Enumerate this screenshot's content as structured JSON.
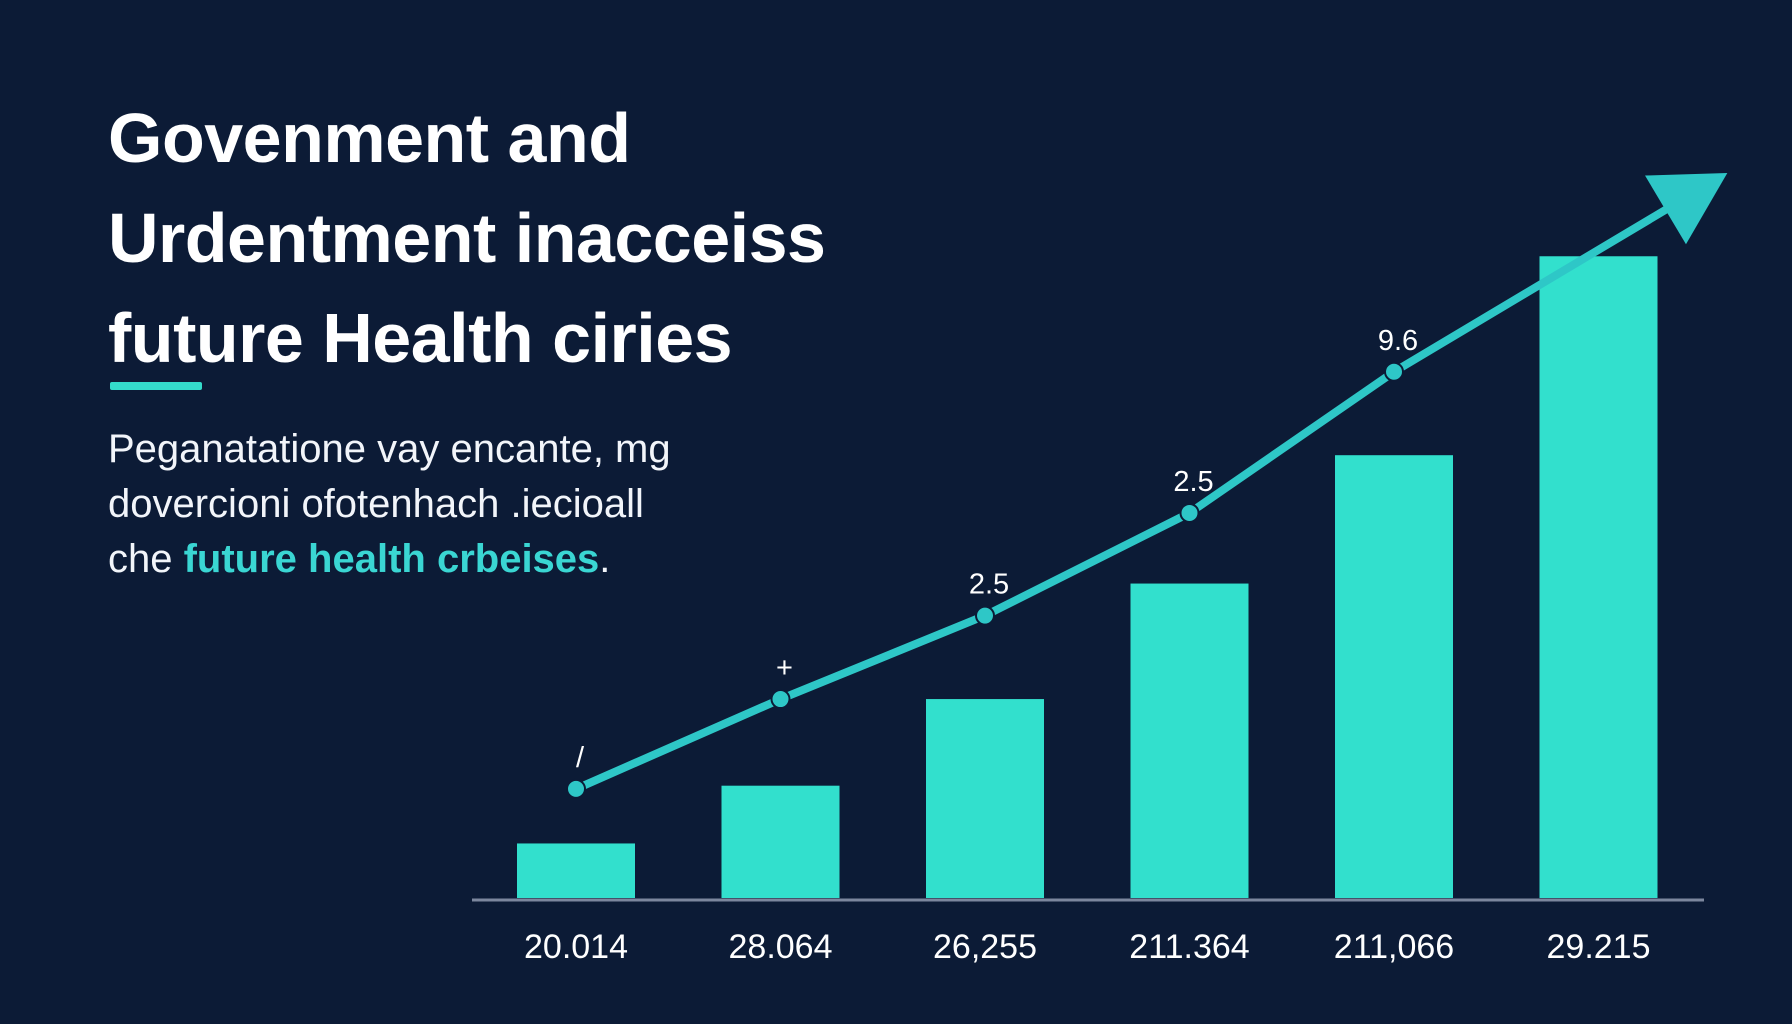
{
  "title_lines": [
    "Govenment and",
    "Urdentment inacceiss",
    "future Health ciries"
  ],
  "subtitle": {
    "line1": "Peganatatione vay encante, mg",
    "line2": "dovercioni ofotenhach .iecioall",
    "line3_prefix": "che ",
    "line3_highlight": "future health crbeises",
    "line3_suffix": "."
  },
  "colors": {
    "background": "#0c1b36",
    "bars": "#32e0cd",
    "line": "#2ec7c7",
    "accent": "#34dccb",
    "highlight_text": "#3ad6d3",
    "axis": "#7c879e"
  },
  "chart_data": {
    "type": "bar",
    "categories": [
      "20.014",
      "28.064",
      "26,255",
      "211.364",
      "211,066",
      "29.215"
    ],
    "series": [
      {
        "values": [
          8.5,
          17.5,
          31,
          49,
          69,
          100
        ]
      }
    ],
    "line_overlay": {
      "values": [
        17,
        31,
        44,
        60,
        82,
        101
      ],
      "labels": [
        "/",
        "+",
        "2.5",
        "2.5",
        "9.6",
        ""
      ],
      "arrow_end": true
    },
    "ylim": [
      0,
      115
    ],
    "grid": false,
    "legend": "none"
  }
}
